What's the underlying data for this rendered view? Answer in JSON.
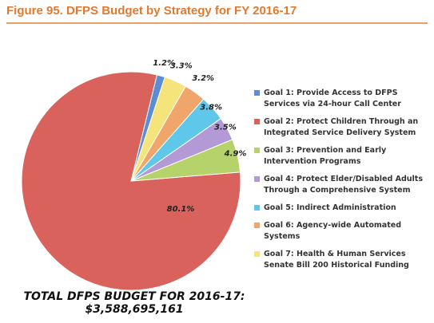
{
  "figure_title": "Figure 95. DFPS Budget by Strategy for FY 2016-17",
  "total_line1": "TOTAL DFPS BUDGET FOR 2016-17:",
  "total_line2": "$3,588,695,161",
  "chart_data": {
    "type": "pie",
    "title": "Figure 95. DFPS Budget by Strategy for FY 2016-17",
    "legend_position": "right",
    "slices": [
      {
        "name": "Goal 1: Provide Access to DFPS Services via 24-hour Call Center",
        "value": 1.2,
        "label": "1.2%",
        "color": "#5b8dd6"
      },
      {
        "name": "Goal 2: Protect Children Through an Integrated Service Delivery System",
        "value": 80.1,
        "label": "80.1%",
        "color": "#d9625d"
      },
      {
        "name": "Goal 3: Prevention and Early Intervention Programs",
        "value": 4.9,
        "label": "4.9%",
        "color": "#b5d36a"
      },
      {
        "name": "Goal 4: Protect Elder/Disabled Adults Through a Comprehensive System",
        "value": 3.5,
        "label": "3.5%",
        "color": "#b39ad6"
      },
      {
        "name": "Goal 5: Indirect Administration",
        "value": 3.8,
        "label": "3.8%",
        "color": "#5fc7ea"
      },
      {
        "name": "Goal 6: Agency-wide Automated Systems",
        "value": 3.2,
        "label": "3.2%",
        "color": "#f0a56a"
      },
      {
        "name": "Goal 7: Health & Human Services Senate Bill 200 Historical Funding",
        "value": 3.3,
        "label": "3.3%",
        "color": "#f5e47c"
      }
    ]
  }
}
